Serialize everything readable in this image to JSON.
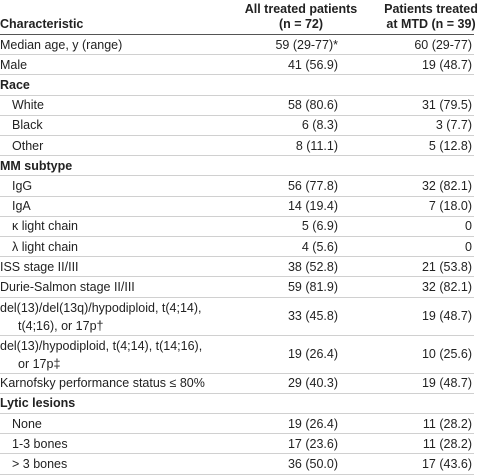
{
  "header": {
    "characteristic": "Characteristic",
    "all_line1": "All treated patients",
    "all_line2": "(n = 72)",
    "mtd_line1": "Patients treated",
    "mtd_line2": "at MTD (n = 39)"
  },
  "rows": [
    [
      "Median age, y (range)",
      "59 (29-77)*",
      "60 (29-77)"
    ],
    [
      "Male",
      "41 (56.9)",
      "19 (48.7)"
    ],
    {
      "title": "Race",
      "rows": [
        [
          "White",
          "58 (80.6)",
          "31 (79.5)"
        ],
        [
          "Black",
          "6 (8.3)",
          "3 (7.7)"
        ],
        [
          "Other",
          "8 (11.1)",
          "5 (12.8)"
        ]
      ]
    },
    {
      "title": "MM subtype",
      "rows": [
        [
          "IgG",
          "56 (77.8)",
          "32 (82.1)"
        ],
        [
          "IgA",
          "14 (19.4)",
          "7 (18.0)"
        ],
        [
          "κ light chain",
          "5 (6.9)",
          "0"
        ],
        [
          "λ light chain",
          "4 (5.6)",
          "0"
        ]
      ]
    },
    [
      "ISS stage II/III",
      "38 (52.8)",
      "21 (53.8)"
    ],
    [
      "Durie-Salmon stage II/III",
      "59 (81.9)",
      "32 (82.1)"
    ],
    [
      "del(13)/del(13q)/hypodiploid, t(4;14),\nt(4;16), or 17p†",
      "33 (45.8)",
      "19 (48.7)"
    ],
    [
      "del(13)/hypodiploid, t(4;14), t(14;16),\nor 17p‡",
      "19 (26.4)",
      "10 (25.6)"
    ],
    [
      "Karnofsky performance status ≤ 80%",
      "29 (40.3)",
      "19 (48.7)"
    ],
    {
      "title": "Lytic lesions",
      "rows": [
        [
          "None",
          "19 (26.4)",
          "11 (28.2)"
        ],
        [
          "1-3 bones",
          "17 (23.6)",
          "11 (28.2)"
        ],
        [
          "> 3 bones",
          "36 (50.0)",
          "17 (43.6)"
        ]
      ]
    }
  ]
}
